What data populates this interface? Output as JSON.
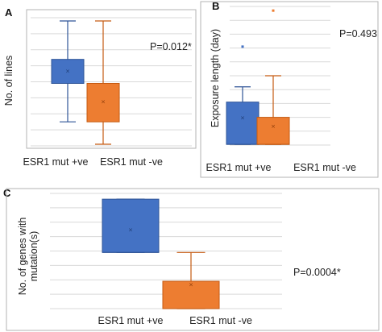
{
  "colors": {
    "positive": "#4472C4",
    "negative": "#ED7D31",
    "positive_edge": "#2F5597",
    "negative_edge": "#C55A11",
    "grid": "#d9d9d9"
  },
  "chart_data": [
    {
      "panel": "A",
      "type": "box",
      "ylabel": "No. of lines",
      "categories": [
        "ESR1 mut +ve",
        "ESR1 mut -ve"
      ],
      "ylim": [
        0,
        8
      ],
      "grid": true,
      "boxes": [
        {
          "category": "ESR1 mut +ve",
          "min": 1.5,
          "q1": 3.9,
          "median": 3.9,
          "q3": 5.4,
          "max": 7.8,
          "mean": 4.7
        },
        {
          "category": "ESR1 mut -ve",
          "min": 0.1,
          "q1": 1.5,
          "median": 3.9,
          "q3": 3.9,
          "max": 7.8,
          "mean": 2.8
        }
      ],
      "annotation": "P=0.012*"
    },
    {
      "panel": "B",
      "type": "box",
      "ylabel": "Exposure length (day)",
      "categories": [
        "ESR1 mut +ve",
        "ESR1 mut -ve"
      ],
      "ylim": [
        0,
        10
      ],
      "grid": true,
      "boxes": [
        {
          "category": "ESR1 mut +ve",
          "min": 0.05,
          "q1": 0.05,
          "median": 0.05,
          "q3": 3.1,
          "max": 4.2,
          "mean": 2.0,
          "outliers": [
            7.1
          ]
        },
        {
          "category": "ESR1 mut -ve",
          "min": 0.05,
          "q1": 0.05,
          "median": 0.05,
          "q3": 2.0,
          "max": 5.0,
          "mean": 1.4,
          "outliers": [
            9.7
          ]
        }
      ],
      "annotation": "P=0.493"
    },
    {
      "panel": "C",
      "type": "box",
      "ylabel": "No. of genes with mutation(s)",
      "categories": [
        "ESR1 mut +ve",
        "ESR1 mut -ve"
      ],
      "ylim": [
        0,
        8
      ],
      "grid": true,
      "boxes": [
        {
          "category": "ESR1 mut +ve",
          "min": 3.9,
          "q1": 3.9,
          "median": 3.9,
          "q3": 7.6,
          "max": 7.6,
          "mean": 5.5
        },
        {
          "category": "ESR1 mut -ve",
          "min": 0.0,
          "q1": 0.0,
          "median": 0.0,
          "q3": 1.9,
          "max": 3.9,
          "mean": 1.7
        }
      ],
      "annotation": "P=0.0004*"
    }
  ]
}
